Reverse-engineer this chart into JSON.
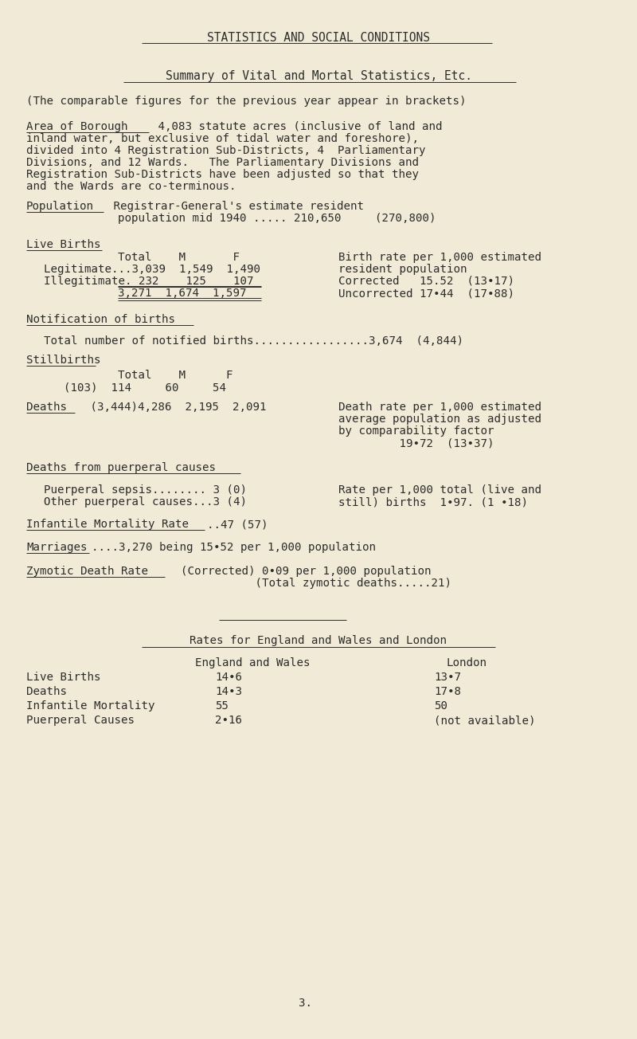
{
  "bg_color": "#f0ead6",
  "text_color": "#2c2c2c",
  "font_family": "DejaVu Sans Mono",
  "title1": "STATISTICS AND SOCIAL CONDITIONS",
  "title2": "Summary of Vital and Mortal Statistics, Etc.",
  "line1": "(The comparable figures for the previous year appear in brackets)",
  "page_num": "3."
}
